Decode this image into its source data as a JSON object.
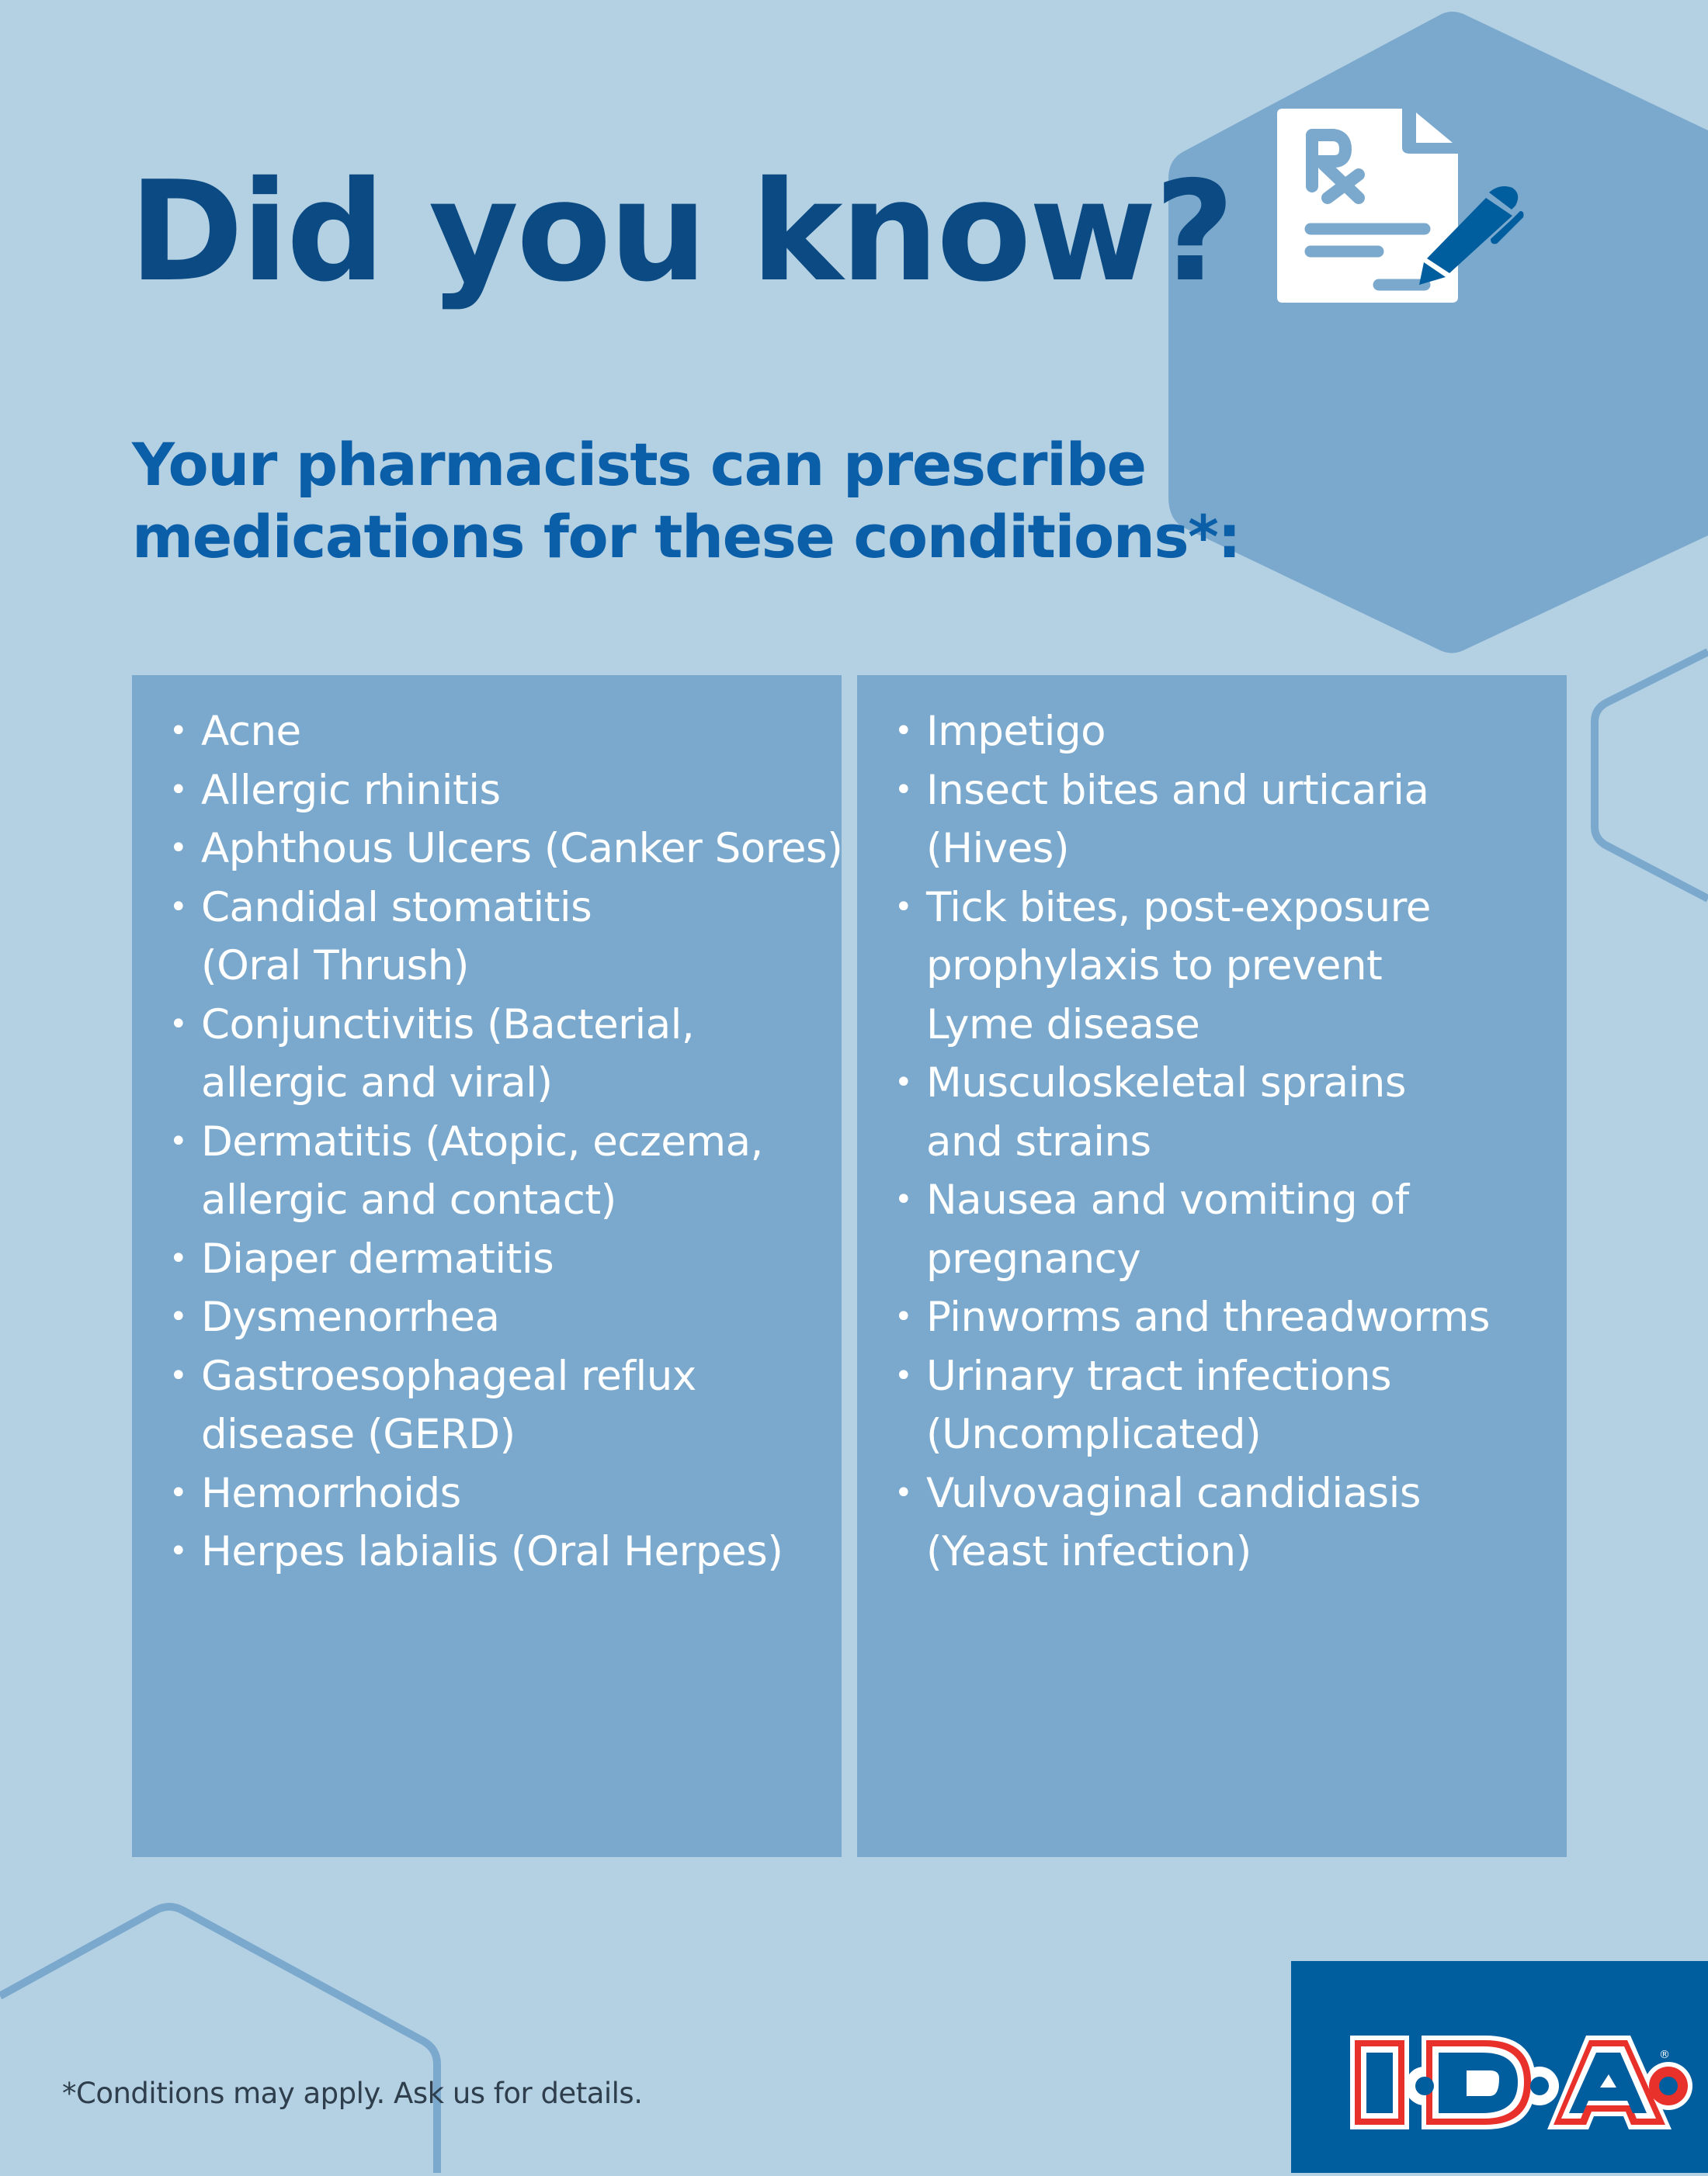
{
  "header": {
    "title": "Did you know?",
    "subtitle_lines": [
      "Your pharmacists can prescribe",
      "medications for these conditions*:"
    ]
  },
  "icon": {
    "name": "prescription-document-with-pen-icon",
    "text": "Rx"
  },
  "conditions": {
    "left": [
      {
        "lines": [
          "Acne"
        ]
      },
      {
        "lines": [
          "Allergic rhinitis"
        ]
      },
      {
        "lines": [
          "Aphthous Ulcers (Canker Sores)"
        ]
      },
      {
        "lines": [
          "Candidal stomatitis",
          "(Oral Thrush)"
        ]
      },
      {
        "lines": [
          "Conjunctivitis (Bacterial,",
          "allergic and viral)"
        ]
      },
      {
        "lines": [
          "Dermatitis (Atopic, eczema,",
          "allergic and contact)"
        ]
      },
      {
        "lines": [
          "Diaper dermatitis"
        ]
      },
      {
        "lines": [
          "Dysmenorrhea"
        ]
      },
      {
        "lines": [
          "Gastroesophageal reflux",
          "disease (GERD)"
        ]
      },
      {
        "lines": [
          "Hemorrhoids"
        ]
      },
      {
        "lines": [
          "Herpes labialis (Oral Herpes)"
        ]
      }
    ],
    "right": [
      {
        "lines": [
          "Impetigo"
        ]
      },
      {
        "lines": [
          "Insect bites and urticaria",
          "(Hives)"
        ]
      },
      {
        "lines": [
          "Tick bites, post-exposure",
          "prophylaxis to prevent",
          "Lyme disease"
        ]
      },
      {
        "lines": [
          "Musculoskeletal sprains",
          "and strains"
        ]
      },
      {
        "lines": [
          "Nausea and vomiting of",
          "pregnancy"
        ]
      },
      {
        "lines": [
          "Pinworms and threadworms"
        ]
      },
      {
        "lines": [
          "Urinary tract infections",
          "(Uncomplicated)"
        ]
      },
      {
        "lines": [
          "Vulvovaginal candidiasis",
          "(Yeast infection)"
        ]
      }
    ],
    "bullet": "•"
  },
  "footnote": "*Conditions may apply. Ask us for details.",
  "logo": {
    "text": "I·D·A",
    "registered": "®"
  },
  "colors": {
    "background": "#b4d0e3",
    "panel": "#7ba9cd",
    "title": "#0b4a82",
    "subtitle": "#0b5ea8",
    "brand_blue": "#005d9e",
    "brand_red": "#e8312a"
  }
}
